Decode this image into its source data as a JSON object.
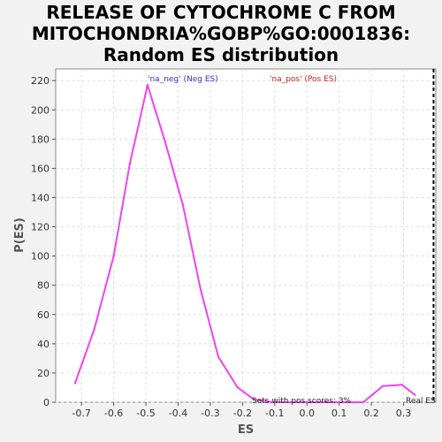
{
  "chart_data": {
    "type": "line",
    "title_lines": [
      "RELEASE OF CYTOCHROME C FROM",
      "MITOCHONDRIA%GOBP%GO:0001836:",
      "Random ES distribution"
    ],
    "xlabel": "ES",
    "ylabel": "P(ES)",
    "xlim": [
      -0.78,
      0.4
    ],
    "ylim": [
      0,
      228
    ],
    "x_ticks": [
      -0.7,
      -0.6,
      -0.5,
      -0.4,
      -0.3,
      -0.2,
      -0.1,
      0.0,
      0.1,
      0.2,
      0.3
    ],
    "x_tick_labels": [
      "-0.7",
      "-0.6",
      "-0.5",
      "-0.4",
      "-0.3",
      "-0.2",
      "-0.1",
      "0.0",
      "0.1",
      "0.2",
      "0.3"
    ],
    "y_ticks": [
      0,
      20,
      40,
      60,
      80,
      100,
      120,
      140,
      160,
      180,
      200,
      220
    ],
    "y_tick_labels": [
      "0",
      "20",
      "40",
      "60",
      "80",
      "100",
      "120",
      "140",
      "160",
      "180",
      "200",
      "220"
    ],
    "grid": true,
    "legend": [
      {
        "label": "'na_neg' (Neg ES)",
        "color": "#3333cc"
      },
      {
        "label": "'na_pos' (Pos ES)",
        "color": "#cc2222"
      }
    ],
    "series": [
      {
        "color": "#ee44ee",
        "x": [
          -0.72,
          -0.66,
          -0.6,
          -0.55,
          -0.495,
          -0.44,
          -0.385,
          -0.33,
          -0.275,
          -0.215,
          -0.165,
          -0.11,
          0.0,
          0.1,
          0.175,
          0.235,
          0.295,
          0.335
        ],
        "y": [
          13,
          50,
          100,
          163,
          217,
          178,
          135,
          77,
          31,
          10,
          2,
          0,
          0,
          0,
          0,
          11,
          12,
          5
        ]
      }
    ],
    "real_es_x": 0.393,
    "annotations": {
      "pos_scores": "Sets with pos scores: 3%",
      "real_es": "Real ES"
    }
  }
}
